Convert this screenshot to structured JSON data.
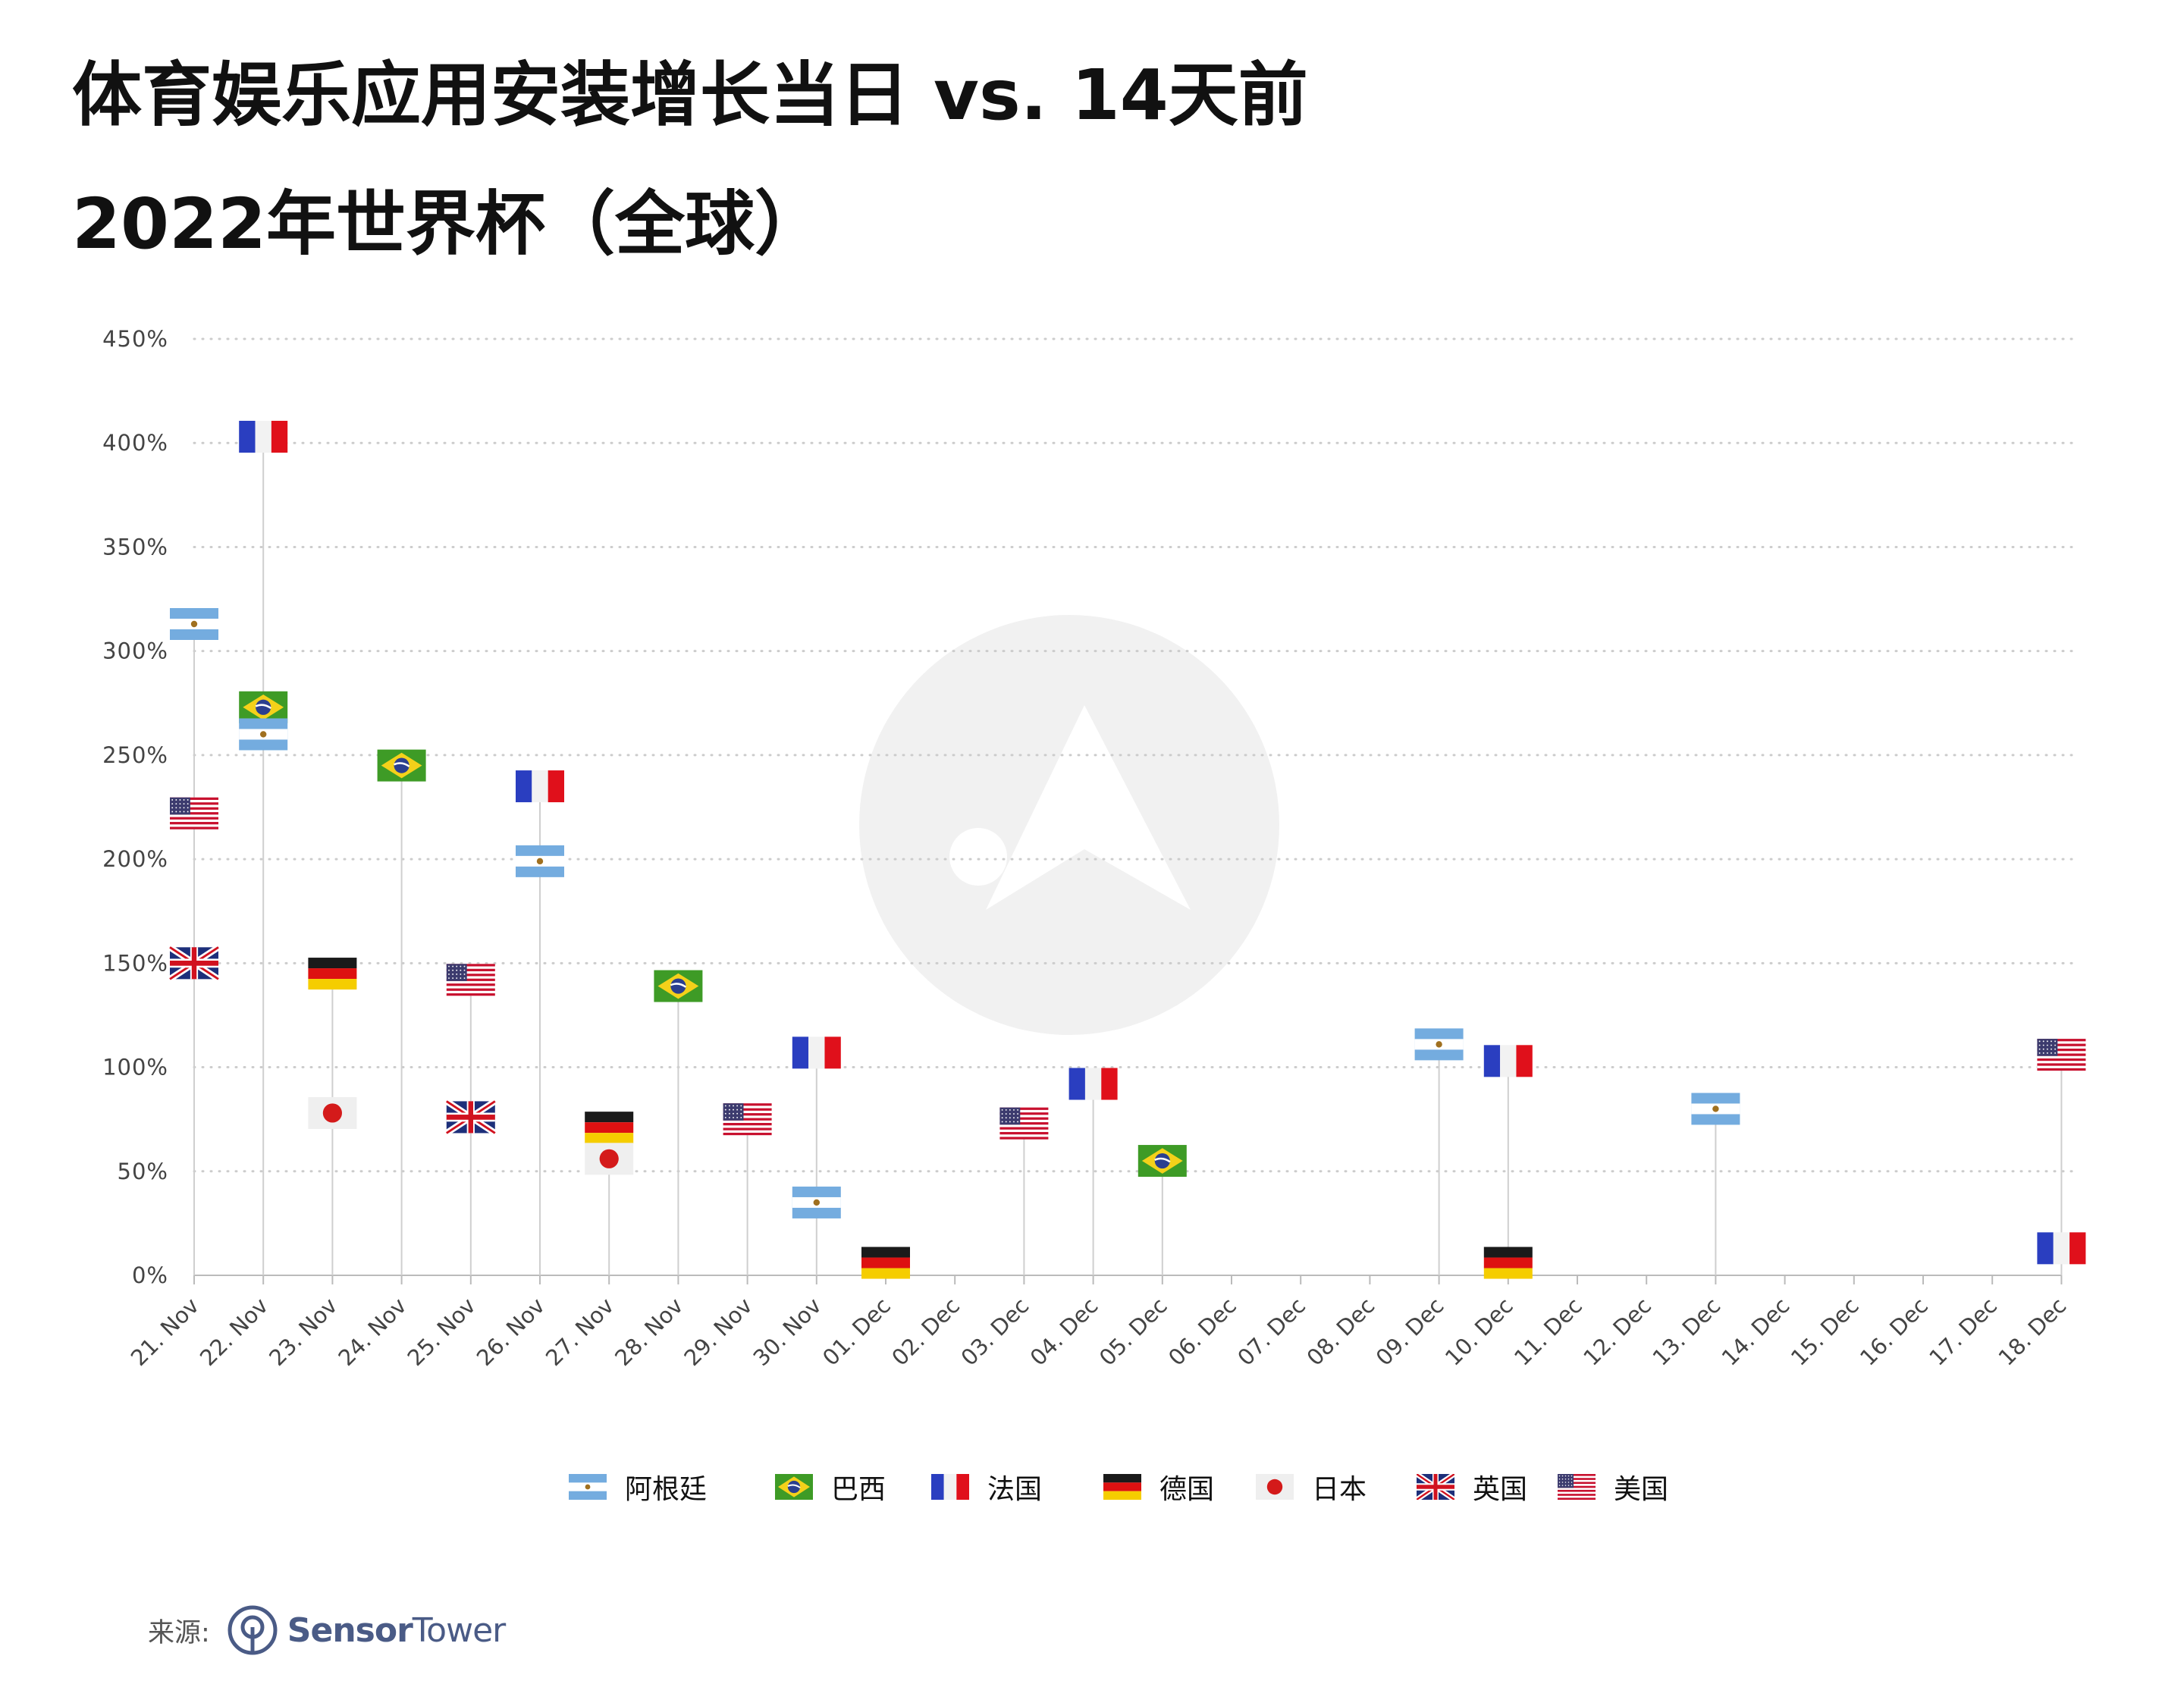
{
  "title_line1": "体育娱乐应用安装增长当日 vs. 14天前",
  "title_line2": "2022年世界杯（全球）",
  "source": {
    "label": "来源:",
    "brand_bold": "Sensor",
    "brand_light": "Tower"
  },
  "legend": [
    {
      "code": "AR",
      "label": "阿根廷"
    },
    {
      "code": "BR",
      "label": "巴西"
    },
    {
      "code": "FR",
      "label": "法国"
    },
    {
      "code": "DE",
      "label": "德国"
    },
    {
      "code": "JP",
      "label": "日本"
    },
    {
      "code": "UK",
      "label": "英国"
    },
    {
      "code": "US",
      "label": "美国"
    }
  ],
  "colors": {
    "grid": "#cccccc",
    "axis_text": "#444444",
    "stem": "#cfcfcf",
    "watermark": "#f1f1f1"
  },
  "chart_data": {
    "type": "scatter",
    "marker": "country-flag",
    "y_unit": "%",
    "ylim": [
      0,
      450
    ],
    "yticks": [
      0,
      50,
      100,
      150,
      200,
      250,
      300,
      350,
      400,
      450
    ],
    "ytick_labels": [
      "0%",
      "50%",
      "100%",
      "150%",
      "200%",
      "250%",
      "300%",
      "350%",
      "400%",
      "450%"
    ],
    "grid": true,
    "legend_position": "bottom-center",
    "categories": [
      "21. Nov",
      "22. Nov",
      "23. Nov",
      "24. Nov",
      "25. Nov",
      "26. Nov",
      "27. Nov",
      "28. Nov",
      "29. Nov",
      "30. Nov",
      "01. Dec",
      "02. Dec",
      "03. Dec",
      "04. Dec",
      "05. Dec",
      "06. Dec",
      "07. Dec",
      "08. Dec",
      "09. Dec",
      "10. Dec",
      "11. Dec",
      "12. Dec",
      "13. Dec",
      "14. Dec",
      "15. Dec",
      "16. Dec",
      "17. Dec",
      "18. Dec"
    ],
    "points": [
      {
        "date": "21. Nov",
        "country": "AR",
        "value": 313
      },
      {
        "date": "21. Nov",
        "country": "US",
        "value": 222
      },
      {
        "date": "21. Nov",
        "country": "UK",
        "value": 150
      },
      {
        "date": "22. Nov",
        "country": "FR",
        "value": 403
      },
      {
        "date": "22. Nov",
        "country": "BR",
        "value": 273
      },
      {
        "date": "22. Nov",
        "country": "AR",
        "value": 260
      },
      {
        "date": "23. Nov",
        "country": "DE",
        "value": 145
      },
      {
        "date": "23. Nov",
        "country": "JP",
        "value": 78
      },
      {
        "date": "24. Nov",
        "country": "BR",
        "value": 245
      },
      {
        "date": "25. Nov",
        "country": "US",
        "value": 142
      },
      {
        "date": "25. Nov",
        "country": "UK",
        "value": 76
      },
      {
        "date": "26. Nov",
        "country": "FR",
        "value": 235
      },
      {
        "date": "26. Nov",
        "country": "AR",
        "value": 199
      },
      {
        "date": "27. Nov",
        "country": "DE",
        "value": 71
      },
      {
        "date": "27. Nov",
        "country": "JP",
        "value": 56
      },
      {
        "date": "28. Nov",
        "country": "BR",
        "value": 139
      },
      {
        "date": "29. Nov",
        "country": "US",
        "value": 75
      },
      {
        "date": "30. Nov",
        "country": "FR",
        "value": 107
      },
      {
        "date": "30. Nov",
        "country": "AR",
        "value": 35
      },
      {
        "date": "01. Dec",
        "country": "DE",
        "value": 6
      },
      {
        "date": "03. Dec",
        "country": "US",
        "value": 73
      },
      {
        "date": "04. Dec",
        "country": "FR",
        "value": 92
      },
      {
        "date": "05. Dec",
        "country": "BR",
        "value": 55
      },
      {
        "date": "09. Dec",
        "country": "AR",
        "value": 111
      },
      {
        "date": "10. Dec",
        "country": "FR",
        "value": 103
      },
      {
        "date": "10. Dec",
        "country": "DE",
        "value": 6
      },
      {
        "date": "13. Dec",
        "country": "AR",
        "value": 80
      },
      {
        "date": "18. Dec",
        "country": "US",
        "value": 106
      },
      {
        "date": "18. Dec",
        "country": "FR",
        "value": 13
      }
    ]
  }
}
